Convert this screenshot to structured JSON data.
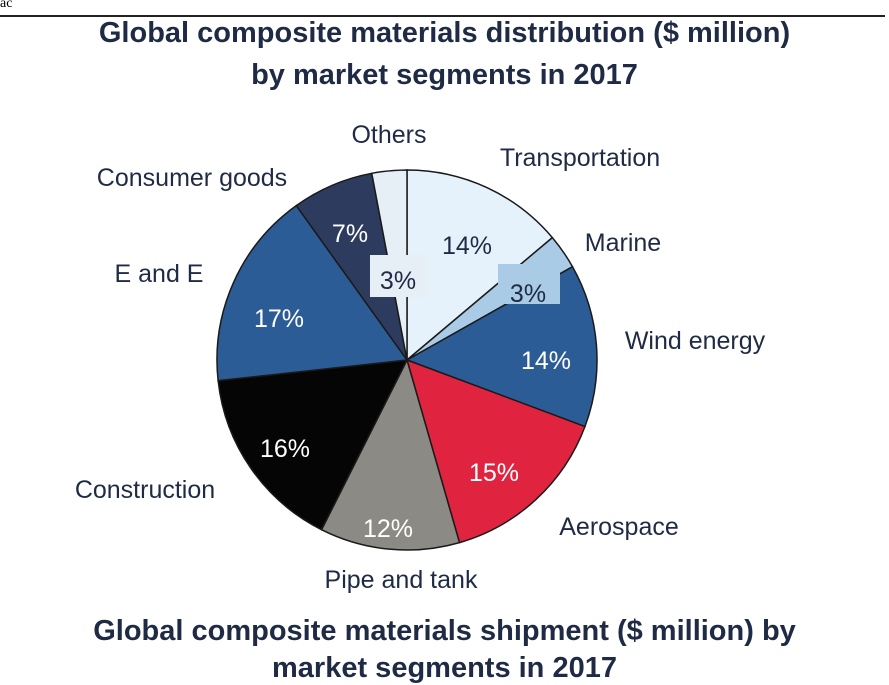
{
  "corner_text": "ac",
  "title_line1": "Global composite materials distribution ($ million)",
  "title_line2": "by market segments in 2017",
  "caption_line1": "Global composite materials shipment ($ million) by",
  "caption_line2": "market segments in 2017",
  "chart_data": {
    "type": "pie",
    "title": "Global composite materials distribution ($ million) by market segments in 2017",
    "start_angle_deg": 0,
    "direction": "clockwise",
    "slices": [
      {
        "label": "Transportation",
        "value": 14,
        "value_label": "14%",
        "color": "#e6f2fb",
        "text_color": "#1f2a44"
      },
      {
        "label": "Marine",
        "value": 3,
        "value_label": "3%",
        "color": "#a9cbe6",
        "text_color": "#1f2a44"
      },
      {
        "label": "Wind energy",
        "value": 14,
        "value_label": "14%",
        "color": "#2c5c95",
        "text_color": "#ffffff"
      },
      {
        "label": "Aerospace",
        "value": 15,
        "value_label": "15%",
        "color": "#e0243f",
        "text_color": "#ffffff"
      },
      {
        "label": "Pipe and tank",
        "value": 12,
        "value_label": "12%",
        "color": "#8c8a85",
        "text_color": "#ffffff"
      },
      {
        "label": "Construction",
        "value": 16,
        "value_label": "16%",
        "color": "#050505",
        "text_color": "#ffffff"
      },
      {
        "label": "E and E",
        "value": 17,
        "value_label": "17%",
        "color": "#2c5c95",
        "text_color": "#ffffff"
      },
      {
        "label": "Consumer goods",
        "value": 7,
        "value_label": "7%",
        "color": "#2d3b5e",
        "text_color": "#ffffff"
      },
      {
        "label": "Others",
        "value": 3,
        "value_label": "3%",
        "color": "#e6eef6",
        "text_color": "#1f2a44"
      }
    ]
  }
}
